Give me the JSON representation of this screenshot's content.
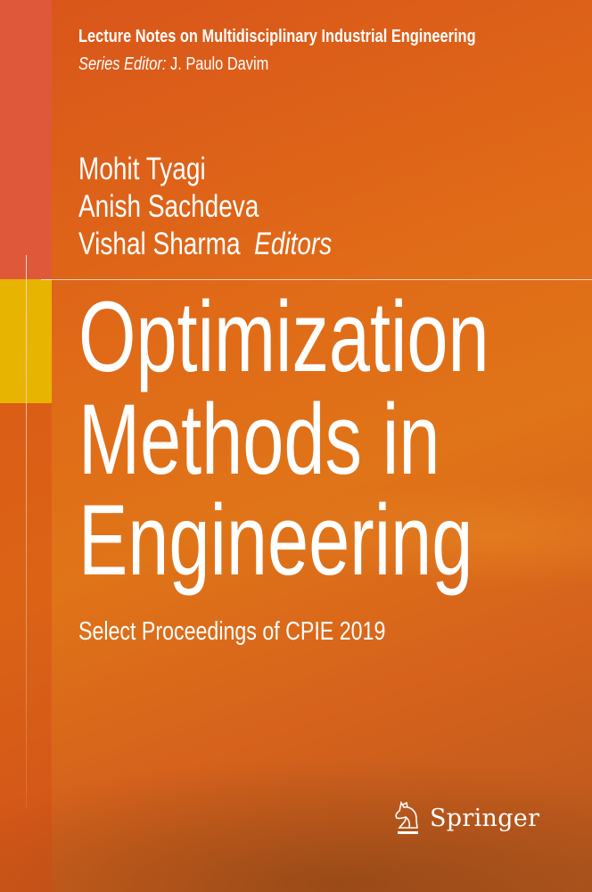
{
  "series": {
    "title": "Lecture Notes on Multidisciplinary Industrial Engineering",
    "editor_label": "Series Editor:",
    "editor_name": "J. Paulo Davim"
  },
  "editors": {
    "names": [
      "Mohit Tyagi",
      "Anish Sachdeva",
      "Vishal Sharma"
    ],
    "label": "Editors"
  },
  "title_lines": [
    "Optimization",
    "Methods in",
    "Engineering"
  ],
  "subtitle": "Select Proceedings of CPIE 2019",
  "publisher": {
    "name": "Springer",
    "logo_icon": "springer-horse-icon"
  },
  "colors": {
    "background": "#e06a18",
    "strip_red": "#e0583a",
    "strip_yellow": "#e8b402",
    "text": "#ffffff"
  }
}
